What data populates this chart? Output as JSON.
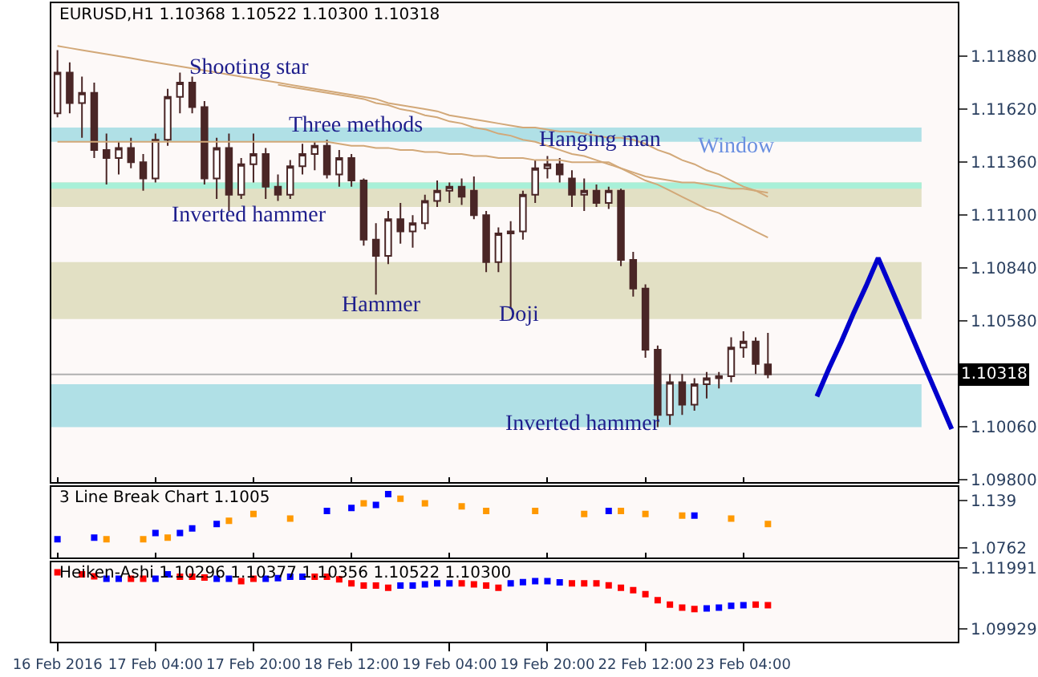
{
  "chart_data": [
    {
      "type": "candlestick",
      "title": "EURUSD,H1 1.10368 1.10522 1.10300 1.10318",
      "ohlc": [
        [
          1.116,
          1.1191,
          1.1158,
          1.118
        ],
        [
          1.118,
          1.1185,
          1.116,
          1.1165
        ],
        [
          1.1165,
          1.1178,
          1.1148,
          1.117
        ],
        [
          1.117,
          1.1175,
          1.1138,
          1.1142
        ],
        [
          1.1142,
          1.115,
          1.1125,
          1.1138
        ],
        [
          1.1138,
          1.1146,
          1.113,
          1.1143
        ],
        [
          1.1143,
          1.1148,
          1.1133,
          1.1136
        ],
        [
          1.1136,
          1.114,
          1.1122,
          1.1128
        ],
        [
          1.1128,
          1.115,
          1.1126,
          1.1147
        ],
        [
          1.1147,
          1.1172,
          1.1144,
          1.1168
        ],
        [
          1.1168,
          1.118,
          1.116,
          1.1175
        ],
        [
          1.1175,
          1.1178,
          1.116,
          1.1163
        ],
        [
          1.1163,
          1.1166,
          1.1125,
          1.1128
        ],
        [
          1.1128,
          1.1148,
          1.1118,
          1.1143
        ],
        [
          1.1143,
          1.115,
          1.1112,
          1.112
        ],
        [
          1.112,
          1.1138,
          1.1118,
          1.1135
        ],
        [
          1.1135,
          1.115,
          1.1126,
          1.114
        ],
        [
          1.114,
          1.1143,
          1.1118,
          1.1124
        ],
        [
          1.1124,
          1.113,
          1.1117,
          1.112
        ],
        [
          1.112,
          1.1137,
          1.1118,
          1.1134
        ],
        [
          1.1134,
          1.1145,
          1.113,
          1.114
        ],
        [
          1.114,
          1.1146,
          1.1132,
          1.1144
        ],
        [
          1.1144,
          1.1147,
          1.1128,
          1.113
        ],
        [
          1.113,
          1.1142,
          1.1124,
          1.1138
        ],
        [
          1.1138,
          1.114,
          1.1124,
          1.1127
        ],
        [
          1.1127,
          1.1128,
          1.1095,
          1.1098
        ],
        [
          1.1098,
          1.1106,
          1.1071,
          1.109
        ],
        [
          1.109,
          1.1112,
          1.1086,
          1.1108
        ],
        [
          1.1108,
          1.1116,
          1.1096,
          1.1102
        ],
        [
          1.1102,
          1.111,
          1.1094,
          1.1106
        ],
        [
          1.1106,
          1.112,
          1.1103,
          1.1117
        ],
        [
          1.1117,
          1.1127,
          1.1114,
          1.1122
        ],
        [
          1.1122,
          1.1126,
          1.1116,
          1.1124
        ],
        [
          1.1124,
          1.1128,
          1.1115,
          1.1119
        ],
        [
          1.1122,
          1.1129,
          1.1108,
          1.111
        ],
        [
          1.111,
          1.1112,
          1.1082,
          1.1087
        ],
        [
          1.1087,
          1.1104,
          1.1082,
          1.1101
        ],
        [
          1.1101,
          1.1107,
          1.1064,
          1.1102
        ],
        [
          1.1102,
          1.1122,
          1.1098,
          1.112
        ],
        [
          1.112,
          1.1137,
          1.1116,
          1.1133
        ],
        [
          1.1133,
          1.1139,
          1.1128,
          1.1135
        ],
        [
          1.1135,
          1.1138,
          1.1126,
          1.113
        ],
        [
          1.1128,
          1.1132,
          1.1114,
          1.112
        ],
        [
          1.112,
          1.1128,
          1.1112,
          1.1122
        ],
        [
          1.1122,
          1.1125,
          1.1114,
          1.1116
        ],
        [
          1.1116,
          1.1124,
          1.1113,
          1.1122
        ],
        [
          1.1122,
          1.1123,
          1.1085,
          1.1088
        ],
        [
          1.1088,
          1.1092,
          1.107,
          1.1074
        ],
        [
          1.1074,
          1.1076,
          1.104,
          1.1044
        ],
        [
          1.1044,
          1.1046,
          1.1006,
          1.1012
        ],
        [
          1.1012,
          1.1032,
          1.1007,
          1.1028
        ],
        [
          1.1028,
          1.1032,
          1.1012,
          1.1017
        ],
        [
          1.1017,
          1.103,
          1.1014,
          1.1027
        ],
        [
          1.1027,
          1.1033,
          1.102,
          1.103
        ],
        [
          1.103,
          1.1033,
          1.1025,
          1.1031
        ],
        [
          1.1031,
          1.105,
          1.1028,
          1.1045
        ],
        [
          1.1045,
          1.1053,
          1.104,
          1.1048
        ],
        [
          1.1048,
          1.105,
          1.1032,
          1.1037
        ],
        [
          1.10368,
          1.10522,
          1.103,
          1.10318
        ],
        null,
        null,
        null,
        null,
        null,
        null,
        null,
        null,
        null,
        null,
        null,
        null,
        null,
        null,
        null
      ],
      "series": [
        {
          "type": "line",
          "color": "#d2a878",
          "values": [
            1.1193,
            1.1192,
            1.1191,
            1.119,
            1.1189,
            1.1188,
            1.1187,
            1.1186,
            1.1185,
            1.1184,
            1.1183,
            1.1182,
            1.1181,
            1.118,
            1.1179,
            1.1178,
            1.1177,
            1.1176,
            1.1175,
            1.1174,
            1.1173,
            1.1172,
            1.1171,
            1.117,
            1.1169,
            1.1168,
            1.1167,
            1.1165,
            1.1164,
            1.1163,
            1.1162,
            1.1161,
            1.1159,
            1.1158,
            1.1157,
            1.1156,
            1.1155,
            1.1154,
            1.1153,
            1.1153,
            1.1152,
            1.1151,
            1.1151,
            1.115,
            1.1149,
            1.1148,
            1.1148,
            1.1147,
            1.1145,
            1.1142,
            1.114,
            1.1137,
            1.1135,
            1.1132,
            1.113,
            1.1127,
            1.1124,
            1.1122,
            1.1119,
            null,
            null,
            null,
            null,
            null,
            null,
            null,
            null,
            null,
            null,
            null,
            null,
            null,
            null,
            null
          ]
        },
        {
          "type": "line",
          "color": "#d2a878",
          "values": [
            null,
            null,
            null,
            null,
            null,
            null,
            null,
            null,
            null,
            null,
            null,
            null,
            null,
            null,
            null,
            null,
            null,
            null,
            1.1174,
            1.1173,
            1.1172,
            1.1171,
            1.117,
            1.1169,
            1.1168,
            1.1167,
            1.1165,
            1.1164,
            1.1162,
            1.1161,
            1.1159,
            1.1158,
            1.1156,
            1.1155,
            1.1153,
            1.1152,
            1.115,
            1.1149,
            1.1147,
            1.1146,
            1.1144,
            1.1142,
            1.114,
            1.1139,
            1.1137,
            1.1135,
            1.1133,
            1.1131,
            1.1129,
            1.1128,
            1.1127,
            1.1126,
            1.1126,
            1.1125,
            1.1124,
            1.1123,
            1.1123,
            1.1122,
            1.1121,
            null,
            null,
            null,
            null,
            null,
            null,
            null,
            null,
            null,
            null,
            null,
            null,
            null,
            null,
            null
          ]
        },
        {
          "type": "line",
          "color": "#d2a878",
          "values": [
            1.1146,
            1.1146,
            1.1146,
            1.1146,
            1.1146,
            1.1146,
            1.1146,
            1.1146,
            1.1146,
            1.1146,
            1.1146,
            1.1146,
            1.1146,
            1.1146,
            1.1146,
            1.1146,
            1.1146,
            1.1146,
            1.1146,
            1.1146,
            1.1146,
            1.1146,
            1.1146,
            1.1145,
            1.1144,
            1.1144,
            1.1143,
            1.1143,
            1.1142,
            1.1142,
            1.1141,
            1.1141,
            1.114,
            1.114,
            1.1139,
            1.1139,
            1.1138,
            1.1138,
            1.1138,
            1.1137,
            1.1137,
            1.1137,
            1.1136,
            1.1136,
            1.1136,
            1.1136,
            1.1133,
            1.113,
            1.1127,
            1.1125,
            1.1122,
            1.1119,
            1.1116,
            1.1113,
            1.1111,
            1.1108,
            1.1105,
            1.1102,
            1.1099,
            null,
            null,
            null,
            null,
            null,
            null,
            null,
            null,
            null,
            null,
            null,
            null,
            null,
            null,
            null
          ]
        },
        {
          "type": "line",
          "color": "#0000cc",
          "values": [
            null,
            null,
            null,
            null,
            null,
            null,
            null,
            null,
            null,
            null,
            null,
            null,
            null,
            null,
            null,
            null,
            null,
            null,
            null,
            null,
            null,
            null,
            null,
            null,
            null,
            null,
            null,
            null,
            null,
            null,
            null,
            null,
            null,
            null,
            null,
            null,
            null,
            null,
            null,
            null,
            null,
            null,
            null,
            null,
            null,
            null,
            null,
            null,
            null,
            null,
            null,
            null,
            null,
            null,
            null,
            null,
            null,
            null,
            null,
            null,
            null,
            null,
            1.1021,
            1.1035,
            1.1048,
            1.1062,
            1.1075,
            1.1089,
            1.1075,
            1.1061,
            1.1047,
            1.1033,
            1.1019,
            1.1005
          ]
        }
      ],
      "bands": [
        {
          "axis": "y",
          "from": 1.1146,
          "to": 1.1153,
          "color": "#b0e0e6"
        },
        {
          "axis": "y",
          "from": 1.1114,
          "to": 1.1126,
          "color": "#e2e0c4"
        },
        {
          "axis": "y",
          "from": 1.1123,
          "to": 1.1126,
          "color": "#a8f0d8"
        },
        {
          "axis": "y",
          "from": 1.1059,
          "to": 1.1087,
          "color": "#e2e0c4"
        },
        {
          "axis": "y",
          "from": 1.1006,
          "to": 1.1027,
          "color": "#b0e0e6"
        }
      ],
      "ref_lines": [
        {
          "axis": "y",
          "value": 1.10318,
          "label": "1.10318",
          "color": "#b0b0b0"
        }
      ],
      "annotations": [
        "Shooting star",
        "Inverted hammer",
        "Three methods",
        "Hammer",
        "Doji",
        "Hanging man",
        "Window",
        "Inverted hammer"
      ],
      "ylim": [
        1.0979,
        1.1214
      ],
      "yticks": [
        {
          "value": 1.1188,
          "label": "1.11880"
        },
        {
          "value": 1.1162,
          "label": "1.11620"
        },
        {
          "value": 1.1136,
          "label": "1.11360"
        },
        {
          "value": 1.111,
          "label": "1.11100"
        },
        {
          "value": 1.1084,
          "label": "1.10840"
        },
        {
          "value": 1.1058,
          "label": "1.10580"
        },
        {
          "value": 1.1006,
          "label": "1.10060"
        },
        {
          "value": 1.098,
          "label": "1.09800"
        }
      ],
      "tick_labels": "y",
      "grid": false,
      "marker": "none"
    },
    {
      "type": "scatter",
      "title": "3 Line Break Chart 1.1005",
      "marker": "square",
      "series": [
        {
          "color": "#0000ff",
          "values": [
            1.088,
            null,
            null,
            1.09,
            null,
            null,
            null,
            null,
            1.096,
            null,
            1.096,
            1.102,
            null,
            1.108,
            null,
            null,
            null,
            null,
            null,
            null,
            null,
            null,
            1.125,
            null,
            1.129,
            null,
            1.133,
            1.147,
            null,
            null,
            null,
            null,
            null,
            null,
            null,
            null,
            null,
            null,
            null,
            null,
            null,
            null,
            null,
            null,
            null,
            1.125,
            null,
            null,
            null,
            null,
            null,
            null,
            1.119,
            null,
            null,
            null,
            null,
            null,
            null,
            null,
            null,
            null,
            null,
            null,
            null,
            null,
            null,
            null,
            null,
            null,
            null,
            null,
            null,
            null
          ]
        },
        {
          "color": "#ff9900",
          "values": [
            null,
            null,
            null,
            null,
            1.088,
            null,
            null,
            1.088,
            null,
            1.09,
            null,
            null,
            null,
            null,
            1.112,
            null,
            1.121,
            null,
            null,
            1.115,
            null,
            null,
            null,
            null,
            null,
            1.135,
            null,
            null,
            1.141,
            null,
            1.135,
            null,
            null,
            1.131,
            null,
            1.125,
            null,
            null,
            null,
            1.125,
            null,
            null,
            null,
            1.121,
            null,
            null,
            1.125,
            null,
            1.121,
            null,
            null,
            1.119,
            null,
            null,
            null,
            1.115,
            null,
            null,
            1.108,
            null,
            null,
            null,
            null,
            null,
            null,
            null,
            null,
            null,
            null,
            null,
            null,
            null,
            null,
            null
          ]
        }
      ],
      "ylim": [
        1.0645,
        1.1566
      ],
      "yticks": [
        1.139,
        1.0762
      ],
      "tick_labels": "y",
      "grid": false
    },
    {
      "type": "scatter",
      "title": "Heiken-Ashi 1.10296 1.10377 1.10356 1.10522 1.10300",
      "marker": "square",
      "categories": [
        "16 Feb 2016",
        null,
        null,
        null,
        null,
        null,
        null,
        null,
        "17 Feb 04:00",
        null,
        null,
        null,
        null,
        null,
        null,
        null,
        "17 Feb 20:00",
        null,
        null,
        null,
        null,
        null,
        null,
        null,
        "18 Feb 12:00",
        null,
        null,
        null,
        null,
        null,
        null,
        null,
        "19 Feb 04:00",
        null,
        null,
        null,
        null,
        null,
        null,
        null,
        "19 Feb 20:00",
        null,
        null,
        null,
        null,
        null,
        null,
        null,
        "22 Feb 12:00",
        null,
        null,
        null,
        null,
        null,
        null,
        null,
        "23 Feb 04:00",
        null,
        null,
        null,
        null,
        null,
        null,
        null,
        null,
        null,
        null,
        null,
        null,
        null,
        null,
        null,
        null,
        null
      ],
      "series": [
        {
          "color": "#ff0000",
          "values": [
            1.1184,
            null,
            1.1177,
            1.117,
            null,
            null,
            1.1162,
            1.1162,
            null,
            null,
            1.1169,
            1.1169,
            1.1166,
            null,
            null,
            1.1154,
            1.1162,
            null,
            null,
            null,
            null,
            1.1169,
            1.1169,
            1.116,
            1.1147,
            1.1139,
            1.1139,
            1.1132,
            null,
            null,
            null,
            null,
            null,
            1.1147,
            1.1143,
            1.1139,
            1.1132,
            null,
            null,
            null,
            null,
            null,
            1.1147,
            1.1147,
            1.1147,
            1.114,
            1.1132,
            1.1124,
            1.111,
            1.109,
            1.1075,
            1.1065,
            1.106,
            null,
            null,
            null,
            null,
            1.1075,
            1.1073,
            null,
            null,
            null,
            null,
            null,
            null,
            null,
            null,
            null,
            null,
            null,
            null,
            null,
            null,
            null
          ]
        },
        {
          "color": "#0000ff",
          "values": [
            null,
            null,
            null,
            null,
            1.1162,
            1.1162,
            null,
            null,
            1.1162,
            1.1177,
            null,
            null,
            null,
            1.1162,
            1.1162,
            null,
            null,
            1.1162,
            1.1164,
            1.1169,
            1.1169,
            null,
            null,
            null,
            null,
            null,
            null,
            null,
            1.1139,
            1.1139,
            1.1143,
            1.1147,
            1.1147,
            null,
            null,
            null,
            null,
            1.1147,
            1.1151,
            1.1154,
            1.1154,
            1.115,
            null,
            null,
            null,
            null,
            null,
            null,
            null,
            null,
            null,
            null,
            null,
            1.1062,
            1.1065,
            1.1071,
            1.1073,
            null,
            null,
            null,
            null,
            null,
            null,
            null,
            null,
            null,
            null,
            null,
            null,
            null,
            null,
            null,
            null,
            null
          ]
        }
      ],
      "ylim": [
        1.095,
        1.1219
      ],
      "yticks": [
        {
          "value": 1.11991,
          "label": "1.11991"
        },
        {
          "value": 1.09929,
          "label": "1.09929"
        }
      ],
      "grid": false
    }
  ]
}
